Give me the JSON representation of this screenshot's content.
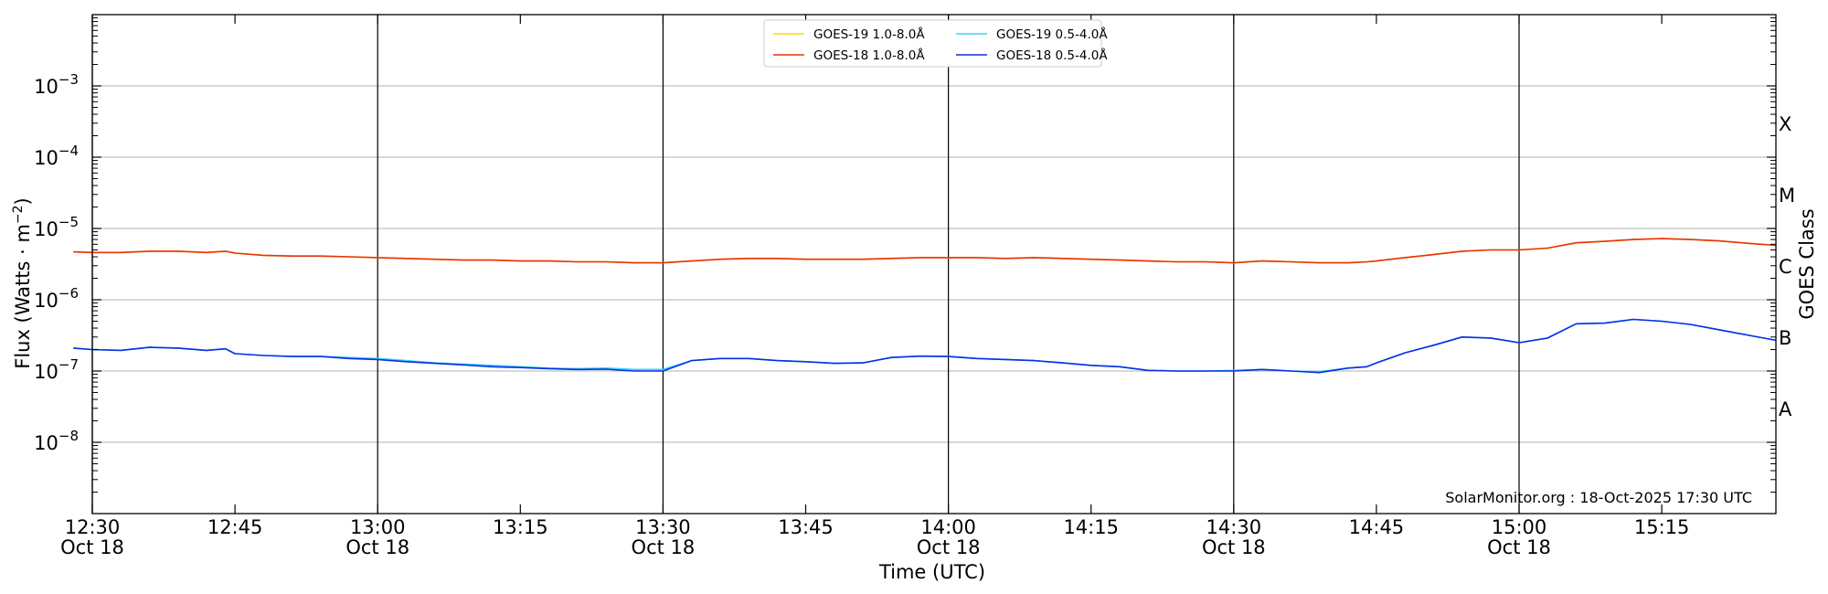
{
  "chart_data": {
    "type": "line",
    "title": "",
    "xlabel": "Time (UTC)",
    "ylabel_main": "Flux (Watts · m",
    "ylabel_sup": "−2",
    "ylabel_close": ")",
    "y2label": "GOES Class",
    "yscale": "log",
    "ylim": [
      1e-09,
      0.01
    ],
    "xlim": [
      "12:30",
      "15:27"
    ],
    "y_ticks": [
      {
        "value": 1e-08,
        "base": "10",
        "exp": "−8"
      },
      {
        "value": 1e-07,
        "base": "10",
        "exp": "−7"
      },
      {
        "value": 1e-06,
        "base": "10",
        "exp": "−6"
      },
      {
        "value": 1e-05,
        "base": "10",
        "exp": "−5"
      },
      {
        "value": 0.0001,
        "base": "10",
        "exp": "−4"
      },
      {
        "value": 0.001,
        "base": "10",
        "exp": "−3"
      }
    ],
    "x_ticks": [
      {
        "time": "12:30",
        "label": "12:30",
        "sub": "Oct 18"
      },
      {
        "time": "12:45",
        "label": "12:45",
        "sub": ""
      },
      {
        "time": "13:00",
        "label": "13:00",
        "sub": "Oct 18"
      },
      {
        "time": "13:15",
        "label": "13:15",
        "sub": ""
      },
      {
        "time": "13:30",
        "label": "13:30",
        "sub": "Oct 18"
      },
      {
        "time": "13:45",
        "label": "13:45",
        "sub": ""
      },
      {
        "time": "14:00",
        "label": "14:00",
        "sub": "Oct 18"
      },
      {
        "time": "14:15",
        "label": "14:15",
        "sub": ""
      },
      {
        "time": "14:30",
        "label": "14:30",
        "sub": "Oct 18"
      },
      {
        "time": "14:45",
        "label": "14:45",
        "sub": ""
      },
      {
        "time": "15:00",
        "label": "15:00",
        "sub": "Oct 18"
      },
      {
        "time": "15:15",
        "label": "15:15",
        "sub": ""
      }
    ],
    "vertical_lines": [
      "12:30",
      "13:00",
      "13:30",
      "14:00",
      "14:30",
      "15:00"
    ],
    "goes_classes": [
      {
        "label": "A",
        "value": 3e-08
      },
      {
        "label": "B",
        "value": 3e-07
      },
      {
        "label": "C",
        "value": 3e-06
      },
      {
        "label": "M",
        "value": 3e-05
      },
      {
        "label": "X",
        "value": 0.0003
      }
    ],
    "grid": true,
    "legend_position": "top-center",
    "legend_columns": 2,
    "annotation": "SolarMonitor.org : 18-Oct-2025 17:30 UTC",
    "x": [
      "12:28",
      "12:30",
      "12:33",
      "12:36",
      "12:39",
      "12:42",
      "12:44",
      "12:45",
      "12:48",
      "12:51",
      "12:54",
      "12:57",
      "13:00",
      "13:03",
      "13:06",
      "13:09",
      "13:12",
      "13:15",
      "13:18",
      "13:21",
      "13:24",
      "13:27",
      "13:30",
      "13:33",
      "13:36",
      "13:39",
      "13:42",
      "13:45",
      "13:48",
      "13:51",
      "13:54",
      "13:57",
      "14:00",
      "14:03",
      "14:06",
      "14:09",
      "14:12",
      "14:15",
      "14:18",
      "14:21",
      "14:24",
      "14:27",
      "14:30",
      "14:33",
      "14:36",
      "14:39",
      "14:42",
      "14:44",
      "14:45",
      "14:48",
      "14:51",
      "14:54",
      "14:57",
      "15:00",
      "15:03",
      "15:06",
      "15:09",
      "15:12",
      "15:15",
      "15:18",
      "15:21",
      "15:24",
      "15:27"
    ],
    "series": [
      {
        "name": "GOES-19 1.0-8.0Å",
        "color": "#ffd700",
        "values": [
          4.7e-06,
          4.6e-06,
          4.6e-06,
          4.8e-06,
          4.8e-06,
          4.6e-06,
          4.8e-06,
          4.5e-06,
          4.2e-06,
          4.1e-06,
          4.1e-06,
          4e-06,
          3.9e-06,
          3.8e-06,
          3.7e-06,
          3.6e-06,
          3.6e-06,
          3.5e-06,
          3.5e-06,
          3.4e-06,
          3.4e-06,
          3.3e-06,
          3.3e-06,
          3.5e-06,
          3.7e-06,
          3.8e-06,
          3.8e-06,
          3.7e-06,
          3.7e-06,
          3.7e-06,
          3.8e-06,
          3.9e-06,
          3.9e-06,
          3.9e-06,
          3.8e-06,
          3.9e-06,
          3.8e-06,
          3.7e-06,
          3.6e-06,
          3.5e-06,
          3.4e-06,
          3.4e-06,
          3.3e-06,
          3.5e-06,
          3.4e-06,
          3.3e-06,
          3.3e-06,
          3.4e-06,
          3.5e-06,
          3.9e-06,
          4.3e-06,
          4.8e-06,
          5e-06,
          5e-06,
          5.3e-06,
          6.3e-06,
          6.6e-06,
          7e-06,
          7.2e-06,
          7e-06,
          6.7e-06,
          6.2e-06,
          5.8e-06
        ]
      },
      {
        "name": "GOES-18 1.0-8.0Å",
        "color": "#e8310a",
        "values": [
          4.7e-06,
          4.6e-06,
          4.6e-06,
          4.8e-06,
          4.8e-06,
          4.6e-06,
          4.8e-06,
          4.5e-06,
          4.2e-06,
          4.1e-06,
          4.1e-06,
          4e-06,
          3.9e-06,
          3.8e-06,
          3.7e-06,
          3.6e-06,
          3.6e-06,
          3.5e-06,
          3.5e-06,
          3.4e-06,
          3.4e-06,
          3.3e-06,
          3.3e-06,
          3.5e-06,
          3.7e-06,
          3.8e-06,
          3.8e-06,
          3.7e-06,
          3.7e-06,
          3.7e-06,
          3.8e-06,
          3.9e-06,
          3.9e-06,
          3.9e-06,
          3.8e-06,
          3.9e-06,
          3.8e-06,
          3.7e-06,
          3.6e-06,
          3.5e-06,
          3.4e-06,
          3.4e-06,
          3.3e-06,
          3.5e-06,
          3.4e-06,
          3.3e-06,
          3.3e-06,
          3.4e-06,
          3.5e-06,
          3.9e-06,
          4.3e-06,
          4.8e-06,
          5e-06,
          5e-06,
          5.3e-06,
          6.3e-06,
          6.6e-06,
          7e-06,
          7.2e-06,
          7e-06,
          6.7e-06,
          6.2e-06,
          5.8e-06
        ]
      },
      {
        "name": "GOES-19 0.5-4.0Å",
        "color": "#33d6f5",
        "values": [
          2.1e-07,
          2e-07,
          1.95e-07,
          2.15e-07,
          2.1e-07,
          1.95e-07,
          2.05e-07,
          1.75e-07,
          1.65e-07,
          1.6e-07,
          1.6e-07,
          1.55e-07,
          1.5e-07,
          1.4e-07,
          1.3e-07,
          1.25e-07,
          1.2e-07,
          1.15e-07,
          1.1e-07,
          1.08e-07,
          1.1e-07,
          1.05e-07,
          1.05e-07,
          1.4e-07,
          1.5e-07,
          1.5e-07,
          1.4e-07,
          1.35e-07,
          1.28e-07,
          1.3e-07,
          1.55e-07,
          1.62e-07,
          1.6e-07,
          1.5e-07,
          1.45e-07,
          1.4e-07,
          1.3e-07,
          1.2e-07,
          1.15e-07,
          1.02e-07,
          1e-07,
          1e-07,
          1.02e-07,
          1.05e-07,
          1e-07,
          9.8e-08,
          1.1e-07,
          1.15e-07,
          1.3e-07,
          1.8e-07,
          2.3e-07,
          3e-07,
          2.9e-07,
          2.5e-07,
          2.9e-07,
          4.6e-07,
          4.7e-07,
          5.3e-07,
          5e-07,
          4.5e-07,
          3.8e-07,
          3.2e-07,
          2.7e-07
        ]
      },
      {
        "name": "GOES-18 0.5-4.0Å",
        "color": "#0a2ee6",
        "values": [
          2.1e-07,
          2e-07,
          1.95e-07,
          2.15e-07,
          2.1e-07,
          1.95e-07,
          2.05e-07,
          1.75e-07,
          1.65e-07,
          1.6e-07,
          1.6e-07,
          1.5e-07,
          1.45e-07,
          1.35e-07,
          1.28e-07,
          1.22e-07,
          1.15e-07,
          1.12e-07,
          1.08e-07,
          1.05e-07,
          1.06e-07,
          1e-07,
          1e-07,
          1.4e-07,
          1.5e-07,
          1.5e-07,
          1.4e-07,
          1.35e-07,
          1.28e-07,
          1.3e-07,
          1.55e-07,
          1.62e-07,
          1.6e-07,
          1.5e-07,
          1.45e-07,
          1.4e-07,
          1.3e-07,
          1.2e-07,
          1.15e-07,
          1.02e-07,
          1e-07,
          1e-07,
          1e-07,
          1.05e-07,
          1e-07,
          9.5e-08,
          1.1e-07,
          1.15e-07,
          1.3e-07,
          1.8e-07,
          2.3e-07,
          3e-07,
          2.9e-07,
          2.5e-07,
          2.9e-07,
          4.6e-07,
          4.7e-07,
          5.3e-07,
          5e-07,
          4.5e-07,
          3.8e-07,
          3.2e-07,
          2.7e-07
        ]
      }
    ]
  }
}
